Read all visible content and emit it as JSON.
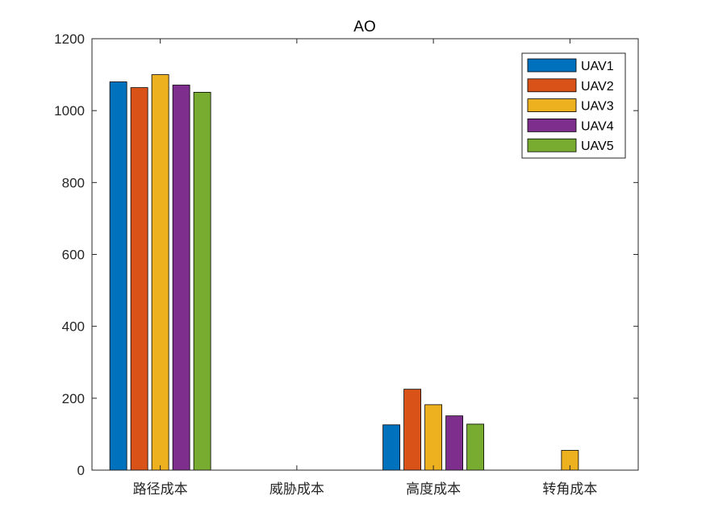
{
  "chart_data": {
    "type": "bar",
    "title": "AO",
    "xlabel": "",
    "ylabel": "",
    "categories": [
      "路径成本",
      "威胁成本",
      "高度成本",
      "转角成本"
    ],
    "ylim": [
      0,
      1200
    ],
    "yticks": [
      0,
      200,
      400,
      600,
      800,
      1000,
      1200
    ],
    "grid": false,
    "legend_position": "top-right",
    "series": [
      {
        "name": "UAV1",
        "color": "#0072BD",
        "values": [
          1080,
          0,
          126,
          0
        ]
      },
      {
        "name": "UAV2",
        "color": "#D95319",
        "values": [
          1064,
          0,
          225,
          0
        ]
      },
      {
        "name": "UAV3",
        "color": "#EDB120",
        "values": [
          1100,
          0,
          182,
          55
        ]
      },
      {
        "name": "UAV4",
        "color": "#7E2F8E",
        "values": [
          1071,
          0,
          151,
          0
        ]
      },
      {
        "name": "UAV5",
        "color": "#77AC30",
        "values": [
          1051,
          0,
          128,
          0
        ]
      }
    ]
  }
}
